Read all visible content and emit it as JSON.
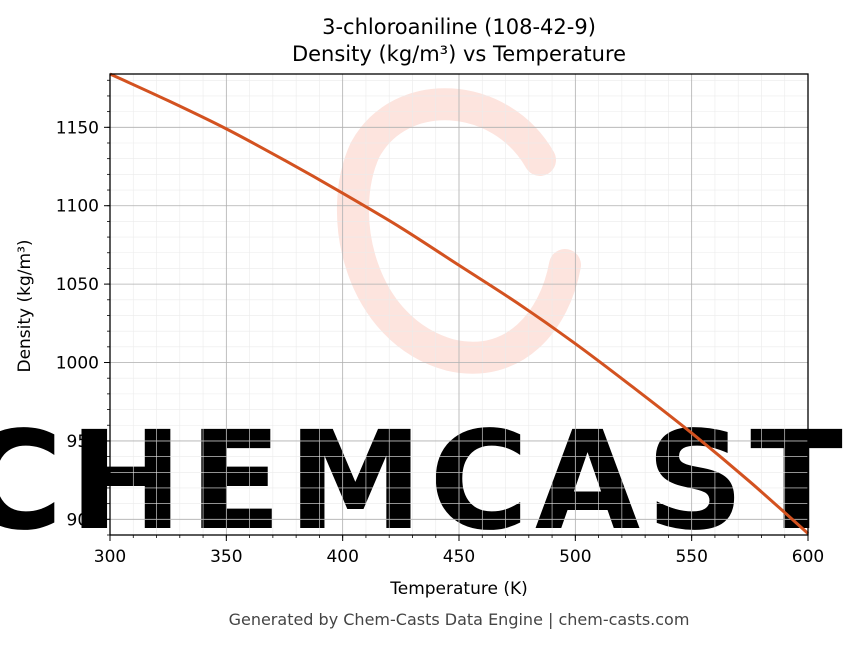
{
  "chart_data": {
    "type": "line",
    "title_line1": "3-chloroaniline (108-42-9)",
    "title_line2": "Density (kg/m³) vs Temperature",
    "xlabel": "Temperature (K)",
    "ylabel": "Density (kg/m³)",
    "xlim": [
      300,
      600
    ],
    "ylim": [
      890,
      1184
    ],
    "x_ticks": [
      300,
      350,
      400,
      450,
      500,
      550,
      600
    ],
    "y_ticks": [
      900,
      950,
      1000,
      1050,
      1100,
      1150
    ],
    "x_tick_labels": [
      "300",
      "350",
      "400",
      "450",
      "500",
      "550",
      "600"
    ],
    "y_tick_labels": [
      "900",
      "950",
      "1000",
      "1050",
      "1100",
      "1150"
    ],
    "grid": true,
    "minor_grid": true,
    "series": [
      {
        "color": "#d35220",
        "x": [
          300,
          325,
          350,
          375,
          400,
          425,
          450,
          475,
          500,
          525,
          550,
          575,
          600
        ],
        "y": [
          1184,
          1167,
          1149,
          1129,
          1108,
          1086,
          1062,
          1038,
          1012,
          984,
          955,
          924,
          891
        ]
      }
    ]
  },
  "watermark": {
    "text": "CHEMCASTS",
    "color": "#fde4de"
  },
  "footer": "Generated by Chem-Casts Data Engine | chem-casts.com"
}
